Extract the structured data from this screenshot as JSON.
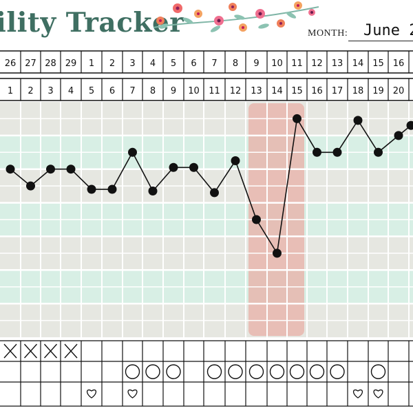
{
  "header": {
    "title": "ility Tracker",
    "month_label": "MONTH:",
    "month_value": "June 2"
  },
  "rows": {
    "dates": [
      "26",
      "27",
      "28",
      "29",
      "1",
      "2",
      "3",
      "4",
      "5",
      "6",
      "7",
      "8",
      "9",
      "10",
      "11",
      "12",
      "13",
      "14",
      "15",
      "16"
    ],
    "cycle_days": [
      "1",
      "2",
      "3",
      "4",
      "5",
      "6",
      "7",
      "8",
      "9",
      "10",
      "11",
      "12",
      "13",
      "14",
      "15",
      "16",
      "17",
      "18",
      "19",
      "20"
    ]
  },
  "chart_data": {
    "type": "line",
    "x": [
      1,
      2,
      3,
      4,
      5,
      6,
      7,
      8,
      9,
      10,
      11,
      12,
      13,
      14,
      15,
      16,
      17,
      18,
      19,
      20,
      21
    ],
    "y": [
      5.0,
      4.5,
      5.0,
      5.0,
      4.4,
      4.4,
      5.5,
      4.35,
      5.05,
      5.05,
      4.3,
      5.25,
      3.5,
      2.5,
      6.5,
      5.5,
      5.5,
      6.45,
      5.5,
      6.0,
      6.3
    ],
    "highlight": {
      "from": 13,
      "to": 15,
      "color": "#e8b6ae"
    },
    "series_color": "#111111",
    "colors": {
      "band_gray": "#e6e7e1",
      "band_mint": "#d8efe5",
      "grid_line": "#ffffff"
    }
  },
  "symbols": {
    "x_row": [
      1,
      1,
      1,
      1,
      0,
      0,
      0,
      0,
      0,
      0,
      0,
      0,
      0,
      0,
      0,
      0,
      0,
      0,
      0,
      0
    ],
    "circle_row": [
      0,
      0,
      0,
      0,
      0,
      0,
      1,
      1,
      1,
      0,
      1,
      1,
      1,
      1,
      1,
      1,
      1,
      0,
      1,
      0
    ],
    "heart_row": [
      0,
      0,
      0,
      0,
      1,
      0,
      1,
      0,
      0,
      0,
      0,
      0,
      0,
      0,
      0,
      0,
      0,
      1,
      1,
      0
    ]
  }
}
